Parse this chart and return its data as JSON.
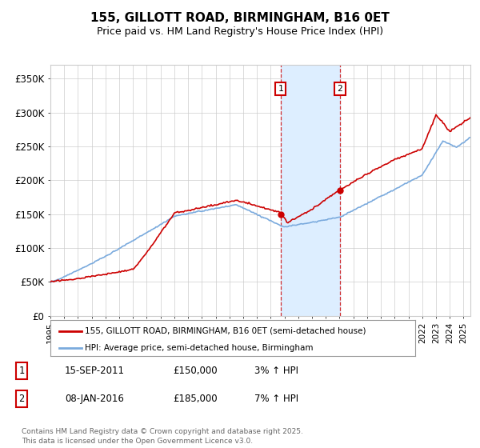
{
  "title": "155, GILLOTT ROAD, BIRMINGHAM, B16 0ET",
  "subtitle": "Price paid vs. HM Land Registry's House Price Index (HPI)",
  "ylabel_ticks": [
    "£0",
    "£50K",
    "£100K",
    "£150K",
    "£200K",
    "£250K",
    "£300K",
    "£350K"
  ],
  "ylim": [
    0,
    370000
  ],
  "xlim_start": 1995.0,
  "xlim_end": 2025.5,
  "red_color": "#cc0000",
  "blue_color": "#7aaadd",
  "shade_color": "#ddeeff",
  "grid_color": "#cccccc",
  "marker1_x": 2011.71,
  "marker1_y": 150000,
  "marker2_x": 2016.03,
  "marker2_y": 185000,
  "marker1_label": "1",
  "marker2_label": "2",
  "legend_line1": "155, GILLOTT ROAD, BIRMINGHAM, B16 0ET (semi-detached house)",
  "legend_line2": "HPI: Average price, semi-detached house, Birmingham",
  "table_row1": [
    "1",
    "15-SEP-2011",
    "£150,000",
    "3% ↑ HPI"
  ],
  "table_row2": [
    "2",
    "08-JAN-2016",
    "£185,000",
    "7% ↑ HPI"
  ],
  "footer": "Contains HM Land Registry data © Crown copyright and database right 2025.\nThis data is licensed under the Open Government Licence v3.0.",
  "bg_color": "#ffffff",
  "plot_bg": "#ffffff"
}
